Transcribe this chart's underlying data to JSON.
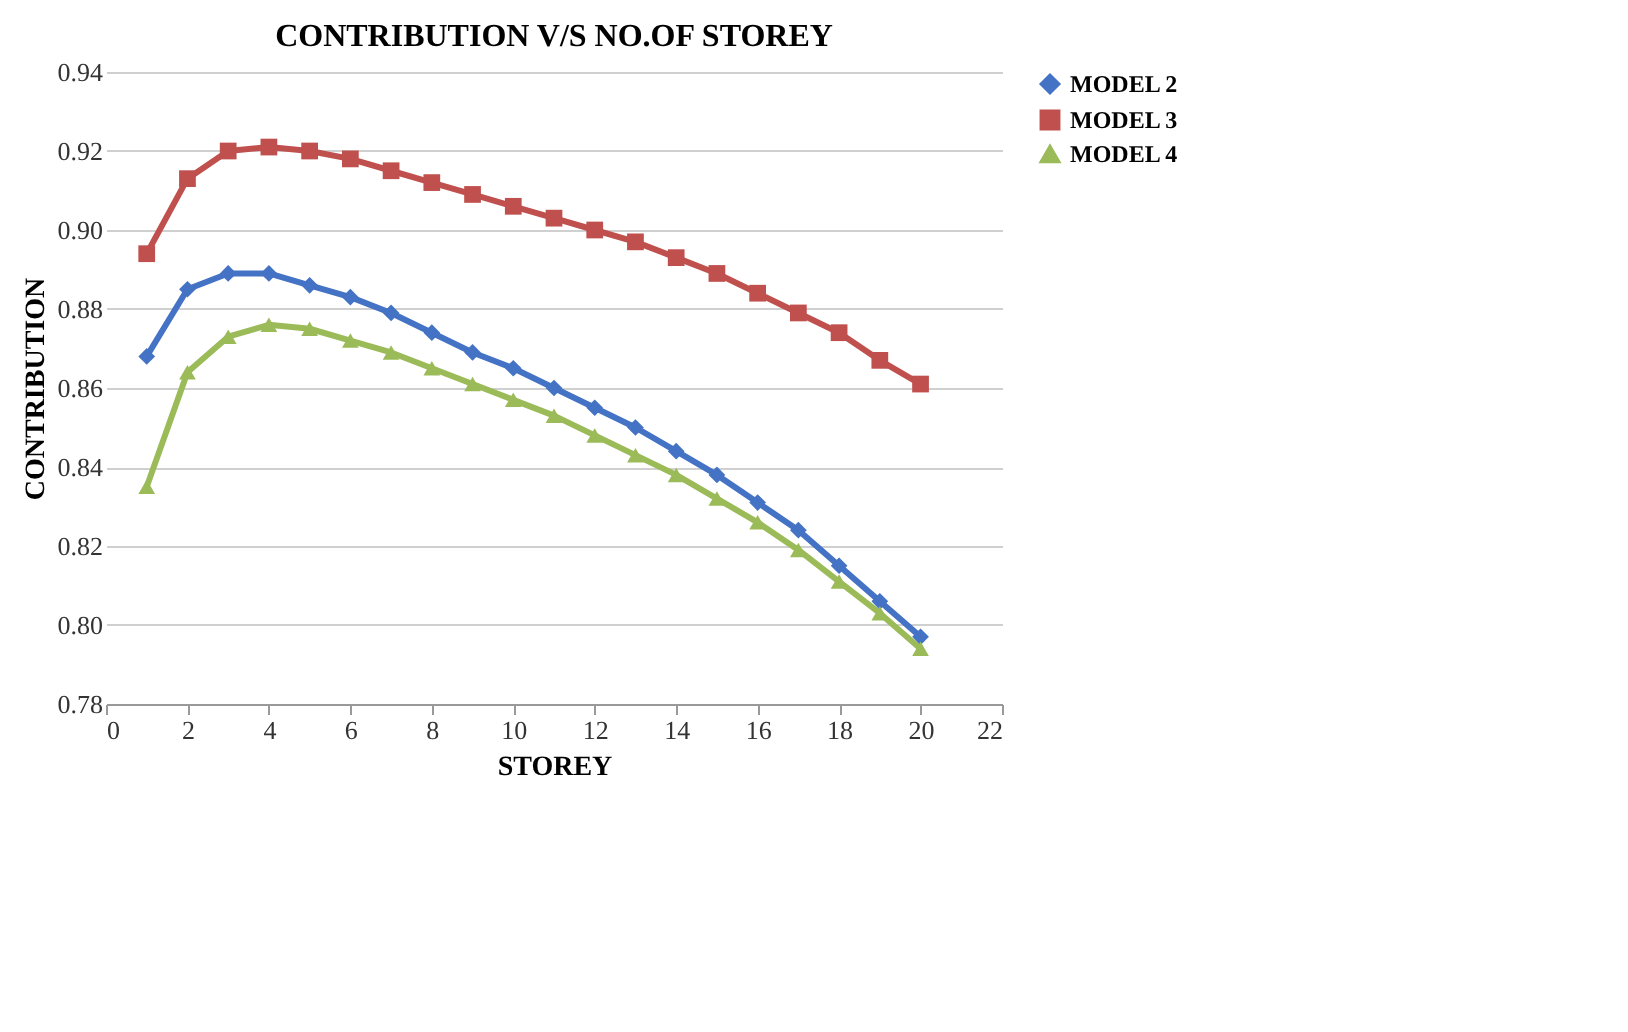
{
  "chart_data": {
    "type": "line",
    "title": "CONTRIBUTION V/S NO.OF STOREY",
    "xlabel": "STOREY",
    "ylabel": "CONTRIBUTION",
    "x": [
      1,
      2,
      3,
      4,
      5,
      6,
      7,
      8,
      9,
      10,
      11,
      12,
      13,
      14,
      15,
      16,
      17,
      18,
      19,
      20
    ],
    "series": [
      {
        "name": "MODEL 2",
        "color": "#4472c4",
        "marker": "diamond",
        "values": [
          0.868,
          0.885,
          0.889,
          0.889,
          0.886,
          0.883,
          0.879,
          0.874,
          0.869,
          0.865,
          0.86,
          0.855,
          0.85,
          0.844,
          0.838,
          0.831,
          0.824,
          0.815,
          0.806,
          0.797
        ]
      },
      {
        "name": "MODEL 3",
        "color": "#c0504d",
        "marker": "square",
        "values": [
          0.894,
          0.913,
          0.92,
          0.921,
          0.92,
          0.918,
          0.915,
          0.912,
          0.909,
          0.906,
          0.903,
          0.9,
          0.897,
          0.893,
          0.889,
          0.884,
          0.879,
          0.874,
          0.867,
          0.861
        ]
      },
      {
        "name": "MODEL 4",
        "color": "#9bbb59",
        "marker": "triangle",
        "values": [
          0.835,
          0.864,
          0.873,
          0.876,
          0.875,
          0.872,
          0.869,
          0.865,
          0.861,
          0.857,
          0.853,
          0.848,
          0.843,
          0.838,
          0.832,
          0.826,
          0.819,
          0.811,
          0.803,
          0.794
        ]
      }
    ],
    "xlim": [
      0,
      22
    ],
    "xticks": [
      0,
      2,
      4,
      6,
      8,
      10,
      12,
      14,
      16,
      18,
      20,
      22
    ],
    "ylim": [
      0.78,
      0.94
    ],
    "yticks": [
      {
        "value": 0.78,
        "label": "0.78"
      },
      {
        "value": 0.8,
        "label": "0.80"
      },
      {
        "value": 0.82,
        "label": "0.82"
      },
      {
        "value": 0.84,
        "label": "0.84"
      },
      {
        "value": 0.86,
        "label": "0.86"
      },
      {
        "value": 0.88,
        "label": "0.88"
      },
      {
        "value": 0.9,
        "label": "0.90"
      },
      {
        "value": 0.92,
        "label": "0.92"
      },
      {
        "value": 0.94,
        "label": "0.94"
      }
    ],
    "grid": "y",
    "legend": "right",
    "line_style": "solid"
  }
}
